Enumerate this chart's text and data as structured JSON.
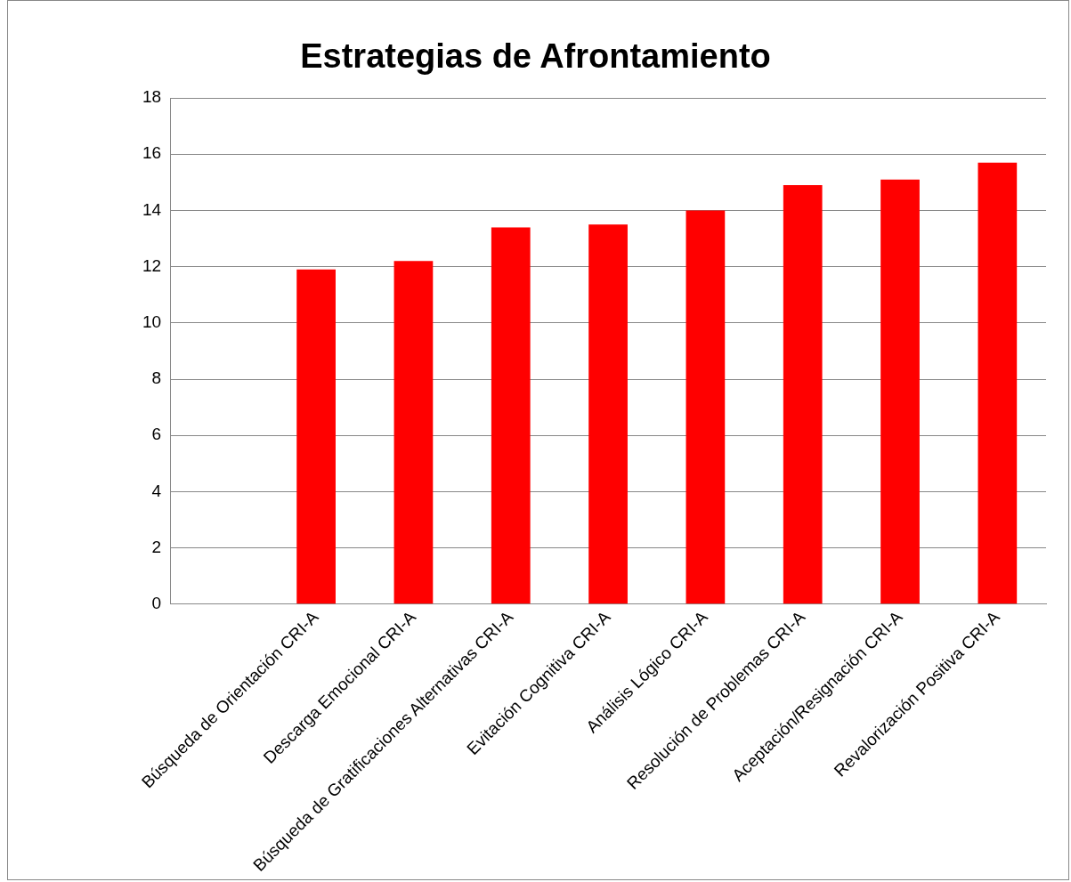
{
  "chart_data": {
    "type": "bar",
    "title": "Estrategias de Afrontamiento",
    "categories": [
      null,
      "Búsqueda de Orientación CRI-A",
      "Descarga Emocional CRI-A",
      "Búsqueda de Gratificaciones Alternativas CRI-A",
      "Evitación Cognitiva CRI-A",
      "Análisis Lógico CRI-A",
      "Resolución de Problemas CRI-A",
      "Aceptación/Resignación CRI-A",
      "Revalorización Positiva CRI-A"
    ],
    "values": [
      null,
      11.9,
      12.2,
      13.4,
      13.5,
      14.0,
      14.9,
      15.1,
      15.7
    ],
    "color": "#ff0000",
    "ylim": [
      0,
      18
    ],
    "yticks": [
      0,
      2,
      4,
      6,
      8,
      10,
      12,
      14,
      16,
      18
    ],
    "grid": "y",
    "legend": false
  }
}
